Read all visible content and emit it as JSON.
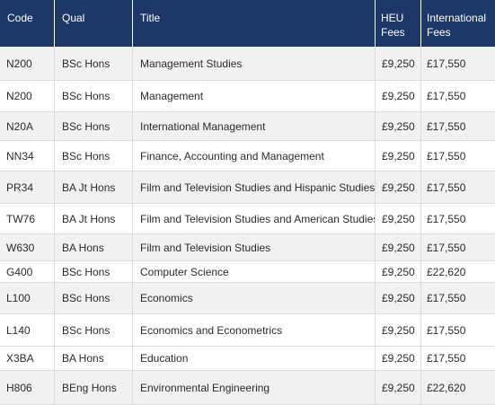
{
  "table": {
    "headers": {
      "code": "Code",
      "qual": "Qual",
      "title": "Title",
      "heu_fees": "HEU Fees",
      "international_fees": "International Fees"
    },
    "rows": [
      {
        "code": "N200",
        "qual": "BSc Hons",
        "title": "Management Studies",
        "heu": "£9,250",
        "intl": "£17,550"
      },
      {
        "code": "N200",
        "qual": "BSc Hons",
        "title": "Management",
        "heu": "£9,250",
        "intl": "£17,550"
      },
      {
        "code": "N20A",
        "qual": "BSc Hons",
        "title": "International Management",
        "heu": "£9,250",
        "intl": "£17,550"
      },
      {
        "code": "NN34",
        "qual": "BSc Hons",
        "title": "Finance, Accounting and Management",
        "heu": "£9,250",
        "intl": "£17,550"
      },
      {
        "code": "PR34",
        "qual": "BA Jt Hons",
        "title": "Film and Television Studies and Hispanic Studies",
        "heu": "£9,250",
        "intl": "£17,550"
      },
      {
        "code": "TW76",
        "qual": "BA Jt Hons",
        "title": "Film and Television Studies and American Studies",
        "heu": "£9,250",
        "intl": "£17,550"
      },
      {
        "code": "W630",
        "qual": "BA Hons",
        "title": "Film and Television Studies",
        "heu": "£9,250",
        "intl": "£17,550"
      },
      {
        "code": "G400",
        "qual": "BSc Hons",
        "title": "Computer Science",
        "heu": "£9,250",
        "intl": "£22,620"
      },
      {
        "code": "L100",
        "qual": "BSc Hons",
        "title": "Economics",
        "heu": "£9,250",
        "intl": "£17,550"
      },
      {
        "code": "L140",
        "qual": "BSc Hons",
        "title": "Economics and Econometrics",
        "heu": "£9,250",
        "intl": "£17,550"
      },
      {
        "code": "X3BA",
        "qual": "BA Hons",
        "title": "Education",
        "heu": "£9,250",
        "intl": "£17,550"
      },
      {
        "code": "H806",
        "qual": "BEng Hons",
        "title": "Environmental Engineering",
        "heu": "£9,250",
        "intl": "£22,620"
      }
    ]
  },
  "colors": {
    "header_bg": "#1d3868",
    "row_shade": "#f1f1f2",
    "row_white": "#ffffff"
  }
}
